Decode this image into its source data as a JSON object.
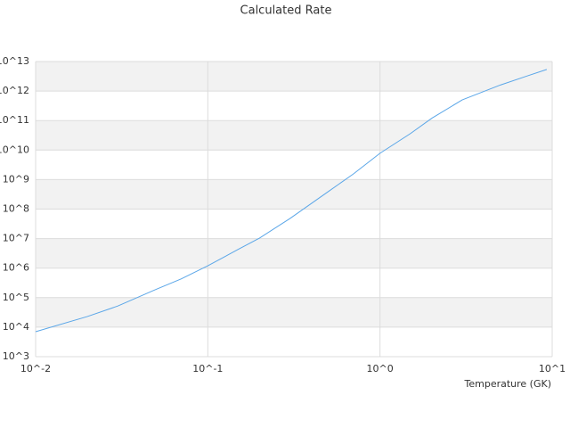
{
  "chart_data": {
    "type": "line",
    "title": "Calculated Rate",
    "x_label": "Temperature (GK)",
    "x": [
      0.01,
      0.02,
      0.03,
      0.05,
      0.07,
      0.1,
      0.15,
      0.2,
      0.3,
      0.5,
      0.7,
      1,
      1.5,
      2,
      3,
      5,
      7,
      9.3
    ],
    "series": [
      {
        "color": "#5aa6e8",
        "values": [
          7000,
          23000,
          52000,
          190000,
          430000,
          1200000,
          4300000,
          10500000,
          48000000,
          390000000,
          1550000000,
          7800000000,
          36000000000,
          120000000000,
          500000000000,
          1600000000000,
          3100000000000,
          5400000000000
        ]
      }
    ],
    "xscale": "log",
    "yscale": "log",
    "xlim": [
      0.01,
      10
    ],
    "ylim": [
      1000,
      10000000000000
    ],
    "xticks": [
      {
        "value": 0.01,
        "label": "10^-2"
      },
      {
        "value": 0.1,
        "label": "10^-1"
      },
      {
        "value": 1,
        "label": "10^0"
      },
      {
        "value": 10,
        "label": "10^1"
      }
    ],
    "yticks": [
      {
        "value": 1000,
        "label": "10^3"
      },
      {
        "value": 10000,
        "label": "10^4"
      },
      {
        "value": 100000,
        "label": "10^5"
      },
      {
        "value": 1000000,
        "label": "10^6"
      },
      {
        "value": 10000000,
        "label": "10^7"
      },
      {
        "value": 100000000,
        "label": "10^8"
      },
      {
        "value": 1000000000,
        "label": "10^9"
      },
      {
        "value": 10000000000,
        "label": "10^10"
      },
      {
        "value": 100000000000,
        "label": "10^11"
      },
      {
        "value": 1000000000000,
        "label": "10^12"
      },
      {
        "value": 10000000000000,
        "label": "10^13"
      }
    ],
    "grid": true,
    "band_color": "#f2f2f2"
  }
}
